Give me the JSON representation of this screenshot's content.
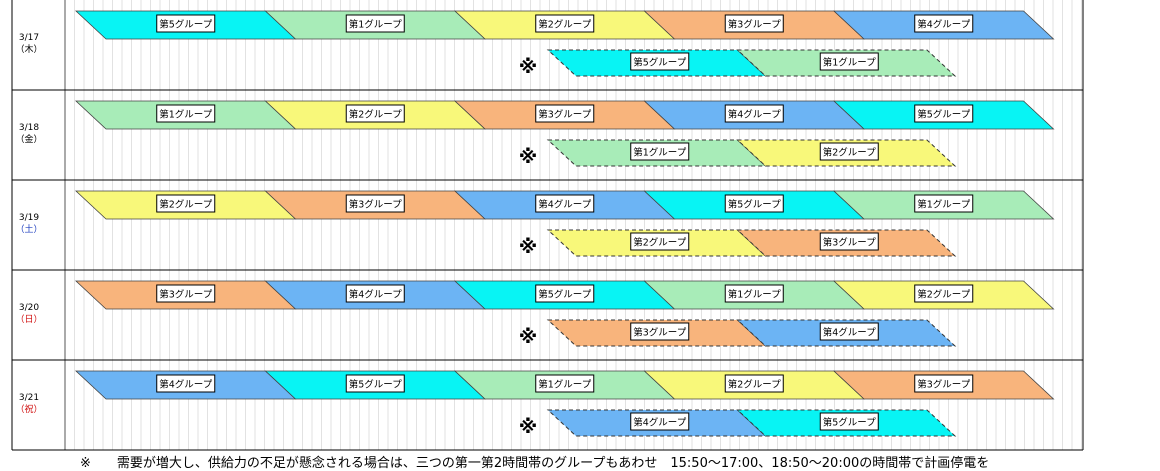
{
  "colors": {
    "第1グループ": "#a8ecb8",
    "第2グループ": "#f8f87a",
    "第3グループ": "#f8b47c",
    "第4グループ": "#6cb4f4",
    "第5グループ": "#08f4f4"
  },
  "days": [
    {
      "date": "3/17",
      "weekday": "（木）",
      "weekday_color": "#000000",
      "main": [
        "第5グループ",
        "第1グループ",
        "第2グループ",
        "第3グループ",
        "第4グループ"
      ],
      "mark": "※",
      "extra": [
        "第5グループ",
        "第1グループ"
      ]
    },
    {
      "date": "3/18",
      "weekday": "（金）",
      "weekday_color": "#000000",
      "main": [
        "第1グループ",
        "第2グループ",
        "第3グループ",
        "第4グループ",
        "第5グループ"
      ],
      "mark": "※",
      "extra": [
        "第1グループ",
        "第2グループ"
      ]
    },
    {
      "date": "3/19",
      "weekday": "（土）",
      "weekday_color": "#1f3fbf",
      "main": [
        "第2グループ",
        "第3グループ",
        "第4グループ",
        "第5グループ",
        "第1グループ"
      ],
      "mark": "※",
      "extra": [
        "第2グループ",
        "第3グループ"
      ]
    },
    {
      "date": "3/20",
      "weekday": "（日）",
      "weekday_color": "#d01010",
      "main": [
        "第3グループ",
        "第4グループ",
        "第5グループ",
        "第1グループ",
        "第2グループ"
      ],
      "mark": "※",
      "extra": [
        "第3グループ",
        "第4グループ"
      ]
    },
    {
      "date": "3/21",
      "weekday": "（祝）",
      "weekday_color": "#d01010",
      "main": [
        "第4グループ",
        "第5グループ",
        "第1グループ",
        "第2グループ",
        "第3グループ"
      ],
      "mark": "※",
      "extra": [
        "第4グループ",
        "第5グループ"
      ]
    }
  ],
  "footnote": "※　　需要が増大し、供給力の不足が懸念される場合は、三つの第一第2時間帯のグループもあわせ　15:50～17:00、18:50～20:00の時間帯で計画停電を"
}
